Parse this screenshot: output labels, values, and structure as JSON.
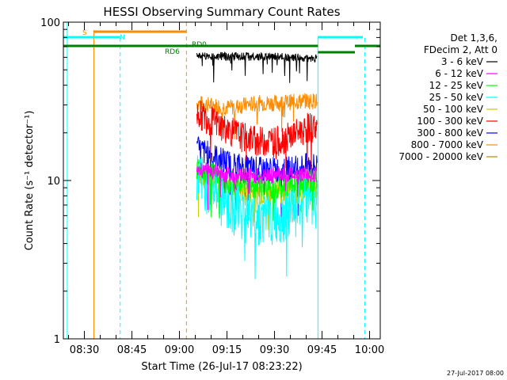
{
  "chart_data": {
    "type": "line",
    "title": "HESSI Observing Summary Count Rates",
    "xlabel": "Start Time (26-Jul-17 08:23:22)",
    "ylabel": "Count Rate (s⁻¹ detector⁻¹)",
    "y_scale": "log",
    "ylim": [
      1,
      100
    ],
    "y_ticks": [
      {
        "v": 1,
        "label": "1"
      },
      {
        "v": 10,
        "label": "10"
      },
      {
        "v": 100,
        "label": "100"
      }
    ],
    "xlim": [
      "08:23:22",
      "10:03:22"
    ],
    "x_ticks": [
      "08:30",
      "08:45",
      "09:00",
      "09:15",
      "09:30",
      "09:45",
      "10:00"
    ],
    "legend_position": "top-right",
    "legend_header": [
      "Det 1,3,6,",
      "FDecim 2, Att 0"
    ],
    "series": [
      {
        "name": "3 - 6 keV",
        "color": "#000000",
        "values": [
          [
            0,
            61
          ],
          [
            7,
            61
          ],
          [
            12,
            60.5
          ],
          [
            15,
            60
          ],
          [
            17.5,
            59
          ]
        ]
      },
      {
        "name": "6 - 12 keV",
        "color": "#ff00ff",
        "values": [
          [
            0,
            12
          ],
          [
            2.5,
            11.5
          ],
          [
            5,
            11
          ],
          [
            7.5,
            10.8
          ],
          [
            10,
            10.6
          ],
          [
            12.5,
            11
          ],
          [
            15,
            11
          ],
          [
            17.5,
            11
          ]
        ]
      },
      {
        "name": "12 - 25 keV",
        "color": "#00ff00",
        "values": [
          [
            0,
            12
          ],
          [
            2.5,
            11
          ],
          [
            5,
            10
          ],
          [
            7.5,
            9.5
          ],
          [
            10,
            9.2
          ],
          [
            12.5,
            9.3
          ],
          [
            15,
            9.6
          ],
          [
            17.5,
            10
          ]
        ]
      },
      {
        "name": "25 - 50 keV",
        "color": "#00ffff",
        "values": [
          [
            0,
            11
          ],
          [
            2.5,
            9
          ],
          [
            5,
            7.5
          ],
          [
            7.5,
            6.5
          ],
          [
            10,
            6
          ],
          [
            12.5,
            6
          ],
          [
            15,
            6.8
          ],
          [
            17.5,
            8
          ]
        ]
      },
      {
        "name": "50 - 100 keV",
        "color": "#cccc00",
        "values": [
          [
            0,
            11
          ],
          [
            2.5,
            10
          ],
          [
            5,
            9
          ],
          [
            7.5,
            8.6
          ],
          [
            10,
            8.4
          ],
          [
            12.5,
            8.4
          ],
          [
            15,
            8.6
          ],
          [
            17.5,
            9
          ]
        ]
      },
      {
        "name": "100 - 300 keV",
        "color": "#ff0000",
        "values": [
          [
            0,
            27
          ],
          [
            2.5,
            24
          ],
          [
            5,
            21
          ],
          [
            7.5,
            19
          ],
          [
            10,
            18
          ],
          [
            12.5,
            18
          ],
          [
            15,
            19.5
          ],
          [
            17.5,
            22
          ]
        ]
      },
      {
        "name": "300 - 800 keV",
        "color": "#0000ff",
        "values": [
          [
            0,
            16
          ],
          [
            2.5,
            14.5
          ],
          [
            5,
            13
          ],
          [
            7.5,
            12.2
          ],
          [
            10,
            11.8
          ],
          [
            12.5,
            11.8
          ],
          [
            15,
            12
          ],
          [
            17.5,
            12.5
          ]
        ]
      },
      {
        "name": "800 - 7000 keV",
        "color": "#ff8c00",
        "values": [
          [
            0,
            31
          ],
          [
            2.5,
            30
          ],
          [
            5,
            29
          ],
          [
            7.5,
            30
          ],
          [
            10,
            31
          ],
          [
            12.5,
            31
          ],
          [
            15,
            31.5
          ],
          [
            17.5,
            32
          ]
        ]
      },
      {
        "name": "7000 - 20000 keV",
        "color": "#b8860b",
        "values": []
      }
    ],
    "flags": [
      {
        "label": "S",
        "color": "#ff8c00"
      },
      {
        "label": "N",
        "color": "#00ffff"
      },
      {
        "label": "RD0",
        "color": "#008000"
      },
      {
        "label": "RD6",
        "color": "#008000"
      }
    ]
  },
  "footer_date": "27-Jul-2017 08:00"
}
